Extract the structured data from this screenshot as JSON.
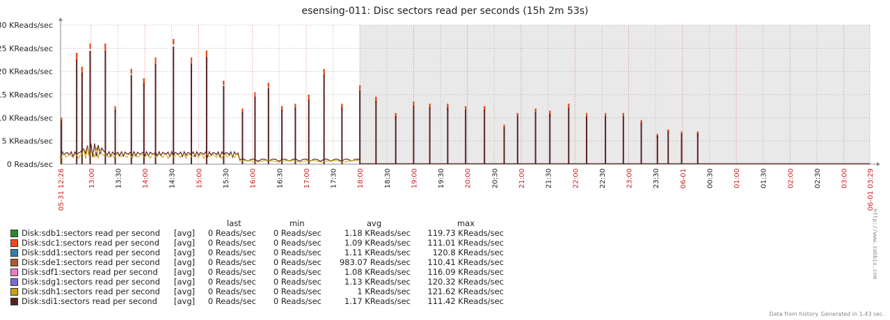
{
  "chart_data": {
    "type": "line",
    "title": "esensing-011: Disc sectors read per seconds (15h 2m 53s)",
    "ylabel": "",
    "xlabel": "",
    "ylim": [
      0,
      30
    ],
    "y_ticks": [
      "0 Reads/sec",
      "5 KReads/sec",
      "10 KReads/sec",
      "15 KReads/sec",
      "20 KReads/sec",
      "25 KReads/sec",
      "30 KReads/sec"
    ],
    "y_tick_values": [
      0,
      5,
      10,
      15,
      20,
      25,
      30
    ],
    "y_unit": "KReads/sec",
    "grid": true,
    "x_range": [
      "12:26",
      "03:29"
    ],
    "x_tick_labels": [
      {
        "label": "05-31 12:26",
        "t": 0,
        "highlight": true
      },
      {
        "label": "13:00",
        "t": 34,
        "highlight": true
      },
      {
        "label": "13:30",
        "t": 64,
        "highlight": false
      },
      {
        "label": "14:00",
        "t": 94,
        "highlight": true
      },
      {
        "label": "14:30",
        "t": 124,
        "highlight": false
      },
      {
        "label": "15:00",
        "t": 154,
        "highlight": true
      },
      {
        "label": "15:30",
        "t": 184,
        "highlight": false
      },
      {
        "label": "16:00",
        "t": 214,
        "highlight": true
      },
      {
        "label": "16:30",
        "t": 244,
        "highlight": false
      },
      {
        "label": "17:00",
        "t": 274,
        "highlight": true
      },
      {
        "label": "17:30",
        "t": 304,
        "highlight": false
      },
      {
        "label": "18:00",
        "t": 334,
        "highlight": true
      },
      {
        "label": "18:30",
        "t": 364,
        "highlight": false
      },
      {
        "label": "19:00",
        "t": 394,
        "highlight": true
      },
      {
        "label": "19:30",
        "t": 424,
        "highlight": false
      },
      {
        "label": "20:00",
        "t": 454,
        "highlight": true
      },
      {
        "label": "20:30",
        "t": 484,
        "highlight": false
      },
      {
        "label": "21:00",
        "t": 514,
        "highlight": true
      },
      {
        "label": "21:30",
        "t": 544,
        "highlight": false
      },
      {
        "label": "22:00",
        "t": 574,
        "highlight": true
      },
      {
        "label": "22:30",
        "t": 604,
        "highlight": false
      },
      {
        "label": "23:00",
        "t": 634,
        "highlight": true
      },
      {
        "label": "23:30",
        "t": 664,
        "highlight": false
      },
      {
        "label": "06-01",
        "t": 694,
        "highlight": true
      },
      {
        "label": "00:30",
        "t": 724,
        "highlight": false
      },
      {
        "label": "01:00",
        "t": 754,
        "highlight": true
      },
      {
        "label": "01:30",
        "t": 784,
        "highlight": false
      },
      {
        "label": "02:00",
        "t": 814,
        "highlight": true
      },
      {
        "label": "02:30",
        "t": 844,
        "highlight": false
      },
      {
        "label": "03:00",
        "t": 874,
        "highlight": true
      },
      {
        "label": "06-01 03:29",
        "t": 903,
        "highlight": true
      }
    ],
    "shaded_region": {
      "from": 334,
      "to": 903
    },
    "x_max": 903,
    "spikes_front": [
      [
        1,
        10
      ],
      [
        18,
        24
      ],
      [
        24,
        21
      ],
      [
        33,
        26
      ],
      [
        50,
        26
      ],
      [
        61,
        12.5
      ],
      [
        79,
        20.5
      ],
      [
        93,
        18.5
      ],
      [
        106,
        23
      ],
      [
        126,
        27
      ],
      [
        146,
        23
      ],
      [
        163,
        24.5
      ],
      [
        182,
        18
      ],
      [
        203,
        12
      ],
      [
        217,
        15.5
      ],
      [
        232,
        17.5
      ],
      [
        247,
        12.5
      ],
      [
        262,
        13
      ],
      [
        277,
        15
      ],
      [
        294,
        20.5
      ],
      [
        314,
        13
      ],
      [
        334,
        17
      ],
      [
        352,
        14.5
      ],
      [
        374,
        11
      ],
      [
        394,
        13.5
      ],
      [
        412,
        13
      ],
      [
        432,
        13
      ],
      [
        452,
        12.5
      ],
      [
        473,
        12.5
      ],
      [
        495,
        8.5
      ],
      [
        510,
        11
      ],
      [
        530,
        12
      ],
      [
        546,
        11.5
      ],
      [
        567,
        13
      ],
      [
        587,
        11
      ],
      [
        608,
        11
      ],
      [
        628,
        11
      ],
      [
        648,
        9.5
      ],
      [
        666,
        6.5
      ],
      [
        678,
        7.5
      ],
      [
        693,
        7
      ],
      [
        711,
        7
      ]
    ],
    "series": [
      {
        "name": "Disk:sdb1:sectors read per second",
        "color": "#2a8a2a",
        "agg": "[avg]",
        "last": "0 Reads/sec",
        "min": "0 Reads/sec",
        "avg": "1.18 KReads/sec",
        "max": "119.73 KReads/sec"
      },
      {
        "name": "Disk:sdc1:sectors read per second",
        "color": "#f04a1a",
        "agg": "[avg]",
        "last": "0 Reads/sec",
        "min": "0 Reads/sec",
        "avg": "1.09 KReads/sec",
        "max": "111.01 KReads/sec"
      },
      {
        "name": "Disk:sdd1:sectors read per second",
        "color": "#2f7fb0",
        "agg": "[avg]",
        "last": "0 Reads/sec",
        "min": "0 Reads/sec",
        "avg": "1.11 KReads/sec",
        "max": "120.8 KReads/sec"
      },
      {
        "name": "Disk:sde1:sectors read per second",
        "color": "#b05a2a",
        "agg": "[avg]",
        "last": "0 Reads/sec",
        "min": "0 Reads/sec",
        "avg": "983.07 Reads/sec",
        "max": "110.41 KReads/sec"
      },
      {
        "name": "Disk:sdf1:sectors read per second",
        "color": "#f07ac0",
        "agg": "[avg]",
        "last": "0 Reads/sec",
        "min": "0 Reads/sec",
        "avg": "1.08 KReads/sec",
        "max": "116.09 KReads/sec"
      },
      {
        "name": "Disk:sdg1:sectors read per second",
        "color": "#7a6ae0",
        "agg": "[avg]",
        "last": "0 Reads/sec",
        "min": "0 Reads/sec",
        "avg": "1.13 KReads/sec",
        "max": "120.32 KReads/sec"
      },
      {
        "name": "Disk:sdh1:sectors read per second",
        "color": "#c8a010",
        "agg": "[avg]",
        "last": "0 Reads/sec",
        "min": "0 Reads/sec",
        "avg": "1 KReads/sec",
        "max": "121.62 KReads/sec"
      },
      {
        "name": "Disk:sdi1:sectors read per second",
        "color": "#5a2020",
        "agg": "[avg]",
        "last": "0 Reads/sec",
        "min": "0 Reads/sec",
        "avg": "1.17 KReads/sec",
        "max": "111.42 KReads/sec"
      }
    ]
  },
  "legend_headers": {
    "last": "last",
    "min": "min",
    "avg": "avg",
    "max": "max"
  },
  "side_url": "http://www.zabbix.com",
  "footer_note": "Data from history. Generated in 1.43 sec."
}
